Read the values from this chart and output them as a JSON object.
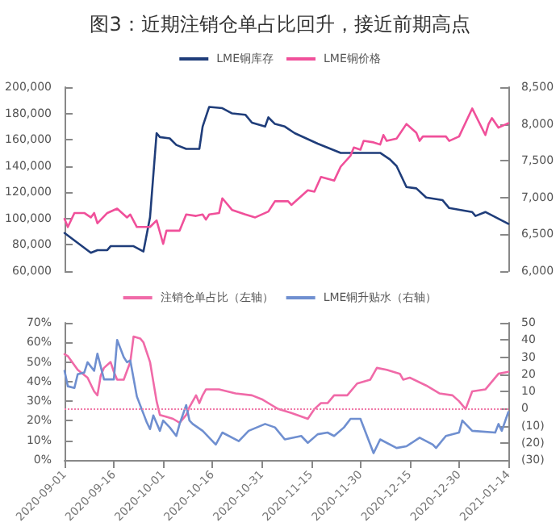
{
  "chart_data": [
    {
      "type": "line",
      "title": "图3：近期注销仓单占比回升，接近前期高点",
      "legend": "top",
      "marker": "none",
      "tick_labels": "y",
      "xlim": [
        "2020-09-01",
        "2021-01-14"
      ],
      "ylim": [
        60000,
        200000
      ],
      "yticks": [
        {
          "value": 60000,
          "label": "60,000"
        },
        {
          "value": 80000,
          "label": "80,000"
        },
        {
          "value": 100000,
          "label": "100,000"
        },
        {
          "value": 120000,
          "label": "120,000"
        },
        {
          "value": 140000,
          "label": "140,000"
        },
        {
          "value": 160000,
          "label": "160,000"
        },
        {
          "value": 180000,
          "label": "180,000"
        },
        {
          "value": 200000,
          "label": "200,000"
        }
      ],
      "y2lim": [
        6000,
        8500
      ],
      "y2ticks": [
        {
          "value": 6000,
          "label": "6,000"
        },
        {
          "value": 6500,
          "label": "6,500"
        },
        {
          "value": 7000,
          "label": "7,000"
        },
        {
          "value": 7500,
          "label": "7,500"
        },
        {
          "value": 8000,
          "label": "8,000"
        },
        {
          "value": 8500,
          "label": "8,500"
        }
      ],
      "series": [
        {
          "name": "LME铜库存",
          "color": "#1f3d7a",
          "x": [
            "2020-09-01",
            "2020-09-09",
            "2020-09-11",
            "2020-09-14",
            "2020-09-15",
            "2020-09-22",
            "2020-09-25",
            "2020-09-27",
            "2020-09-29",
            "2020-09-30",
            "2020-10-03",
            "2020-10-05",
            "2020-10-08",
            "2020-10-12",
            "2020-10-13",
            "2020-10-15",
            "2020-10-19",
            "2020-10-22",
            "2020-10-26",
            "2020-10-28",
            "2020-11-01",
            "2020-11-02",
            "2020-11-04",
            "2020-11-07",
            "2020-11-10",
            "2020-11-17",
            "2020-11-24",
            "2020-12-06",
            "2020-12-09",
            "2020-12-11",
            "2020-12-14",
            "2020-12-17",
            "2020-12-20",
            "2020-12-25",
            "2020-12-27",
            "2021-01-03",
            "2021-01-04",
            "2021-01-07",
            "2021-01-14"
          ],
          "values": [
            89000,
            74000,
            76000,
            76000,
            79000,
            79000,
            75000,
            101000,
            165000,
            162000,
            161000,
            156000,
            153000,
            153000,
            170000,
            185000,
            184000,
            180000,
            179000,
            173000,
            170000,
            177000,
            172000,
            170000,
            165000,
            157000,
            150000,
            150000,
            145000,
            140000,
            124000,
            123000,
            116000,
            114000,
            108000,
            105000,
            102000,
            105000,
            96000
          ]
        },
        {
          "name": "LME铜价格",
          "color": "#f0509a",
          "axis": "y2",
          "x": [
            "2020-09-01",
            "2020-09-02",
            "2020-09-04",
            "2020-09-07",
            "2020-09-09",
            "2020-09-10",
            "2020-09-11",
            "2020-09-14",
            "2020-09-17",
            "2020-09-20",
            "2020-09-21",
            "2020-09-23",
            "2020-09-27",
            "2020-09-29",
            "2020-10-01",
            "2020-10-02",
            "2020-10-06",
            "2020-10-08",
            "2020-10-11",
            "2020-10-13",
            "2020-10-14",
            "2020-10-15",
            "2020-10-18",
            "2020-10-19",
            "2020-10-22",
            "2020-10-26",
            "2020-10-29",
            "2020-11-02",
            "2020-11-04",
            "2020-11-08",
            "2020-11-09",
            "2020-11-14",
            "2020-11-16",
            "2020-11-18",
            "2020-11-22",
            "2020-11-24",
            "2020-11-27",
            "2020-11-28",
            "2020-11-30",
            "2020-12-01",
            "2020-12-04",
            "2020-12-06",
            "2020-12-07",
            "2020-12-08",
            "2020-12-11",
            "2020-12-14",
            "2020-12-17",
            "2020-12-18",
            "2020-12-19",
            "2020-12-26",
            "2020-12-27",
            "2020-12-30",
            "2021-01-03",
            "2021-01-07",
            "2021-01-08",
            "2021-01-09",
            "2021-01-11",
            "2021-01-14"
          ],
          "values": [
            6710,
            6600,
            6790,
            6790,
            6730,
            6790,
            6650,
            6790,
            6850,
            6730,
            6770,
            6600,
            6600,
            6690,
            6370,
            6550,
            6550,
            6770,
            6750,
            6770,
            6700,
            6770,
            6790,
            6990,
            6830,
            6770,
            6730,
            6810,
            6950,
            6950,
            6900,
            7100,
            7080,
            7280,
            7230,
            7420,
            7570,
            7680,
            7650,
            7770,
            7750,
            7720,
            7850,
            7770,
            7800,
            8000,
            7880,
            7770,
            7830,
            7830,
            7770,
            7830,
            8210,
            7850,
            8000,
            8080,
            7950,
            8010
          ]
        }
      ]
    },
    {
      "type": "line",
      "legend": "top",
      "marker": "none",
      "xlim": [
        "2020-09-01",
        "2021-01-14"
      ],
      "xticks": [
        "2020-09-01",
        "2020-09-16",
        "2020-10-01",
        "2020-10-16",
        "2020-10-31",
        "2020-11-15",
        "2020-11-30",
        "2020-12-15",
        "2020-12-30",
        "2021-01-14"
      ],
      "ylim": [
        0,
        70
      ],
      "yticks": [
        {
          "value": 0,
          "label": "0%"
        },
        {
          "value": 10,
          "label": "10%"
        },
        {
          "value": 20,
          "label": "20%"
        },
        {
          "value": 30,
          "label": "30%"
        },
        {
          "value": 40,
          "label": "40%"
        },
        {
          "value": 50,
          "label": "50%"
        },
        {
          "value": 60,
          "label": "60%"
        },
        {
          "value": 70,
          "label": "70%"
        }
      ],
      "y2lim": [
        -30,
        50
      ],
      "y2ticks": [
        {
          "value": -30,
          "label": "(30)"
        },
        {
          "value": -20,
          "label": "(20)"
        },
        {
          "value": -10,
          "label": "(10)"
        },
        0,
        10,
        20,
        30,
        40,
        50
      ],
      "ref_lines": [
        {
          "axis": "y2",
          "value": 0,
          "color": "#f07aa8",
          "line_style": "dotted"
        }
      ],
      "series": [
        {
          "name": "注销仓单占比（左轴）",
          "color": "#f06aa8",
          "x": [
            "2020-09-01",
            "2020-09-02",
            "2020-09-05",
            "2020-09-08",
            "2020-09-10",
            "2020-09-11",
            "2020-09-12",
            "2020-09-13",
            "2020-09-15",
            "2020-09-16",
            "2020-09-17",
            "2020-09-19",
            "2020-09-21",
            "2020-09-22",
            "2020-09-24",
            "2020-09-25",
            "2020-09-27",
            "2020-09-28",
            "2020-09-29",
            "2020-09-30",
            "2020-10-02",
            "2020-10-04",
            "2020-10-06",
            "2020-10-08",
            "2020-10-09",
            "2020-10-11",
            "2020-10-12",
            "2020-10-13",
            "2020-10-14",
            "2020-10-18",
            "2020-10-23",
            "2020-10-28",
            "2020-10-31",
            "2020-11-03",
            "2020-11-05",
            "2020-11-09",
            "2020-11-14",
            "2020-11-16",
            "2020-11-18",
            "2020-11-20",
            "2020-11-22",
            "2020-11-26",
            "2020-11-29",
            "2020-12-03",
            "2020-12-05",
            "2020-12-08",
            "2020-12-12",
            "2020-12-13",
            "2020-12-15",
            "2020-12-20",
            "2020-12-24",
            "2020-12-28",
            "2020-12-30",
            "2021-01-01",
            "2021-01-03",
            "2021-01-07",
            "2021-01-11",
            "2021-01-14"
          ],
          "values": [
            54,
            53,
            46,
            42,
            35,
            33,
            43,
            47,
            50,
            45,
            41,
            41,
            50,
            63,
            62,
            60,
            50,
            40,
            30,
            23,
            22,
            21,
            19,
            23,
            27,
            33,
            29,
            33,
            36,
            36,
            34,
            33,
            31,
            28,
            26,
            24,
            21,
            26,
            29,
            29,
            33,
            33,
            39,
            41,
            47,
            46,
            44,
            41,
            42,
            38,
            34,
            33,
            30,
            26,
            35,
            36,
            44,
            45
          ]
        },
        {
          "name": "LME铜升贴水（右轴）",
          "color": "#6f8fd0",
          "axis": "y2",
          "x": [
            "2020-09-01",
            "2020-09-02",
            "2020-09-04",
            "2020-09-05",
            "2020-09-07",
            "2020-09-08",
            "2020-09-10",
            "2020-09-11",
            "2020-09-13",
            "2020-09-16",
            "2020-09-17",
            "2020-09-19",
            "2020-09-20",
            "2020-09-21",
            "2020-09-23",
            "2020-09-25",
            "2020-09-26",
            "2020-09-27",
            "2020-09-28",
            "2020-09-30",
            "2020-10-01",
            "2020-10-03",
            "2020-10-05",
            "2020-10-06",
            "2020-10-08",
            "2020-10-09",
            "2020-10-10",
            "2020-10-13",
            "2020-10-17",
            "2020-10-19",
            "2020-10-24",
            "2020-10-27",
            "2020-11-01",
            "2020-11-04",
            "2020-11-07",
            "2020-11-12",
            "2020-11-14",
            "2020-11-17",
            "2020-11-20",
            "2020-11-22",
            "2020-11-25",
            "2020-11-27",
            "2020-11-30",
            "2020-12-04",
            "2020-12-06",
            "2020-12-11",
            "2020-12-14",
            "2020-12-18",
            "2020-12-22",
            "2020-12-23",
            "2020-12-26",
            "2020-12-30",
            "2020-12-31",
            "2021-01-03",
            "2021-01-10",
            "2021-01-11",
            "2021-01-12",
            "2021-01-14"
          ],
          "values": [
            22,
            13,
            12,
            20,
            21,
            27,
            22,
            32,
            17,
            17,
            40,
            30,
            27,
            28,
            7,
            -3,
            -8,
            -12,
            -4,
            -13,
            -7,
            -11,
            -16,
            -9,
            2,
            -7,
            -9,
            -13,
            -21,
            -14,
            -19,
            -13,
            -9,
            -11,
            -18,
            -16,
            -20,
            -15,
            -14,
            -16,
            -11,
            -6,
            -6,
            -26,
            -18,
            -23,
            -22,
            -17,
            -21,
            -23,
            -16,
            -14,
            -7,
            -13,
            -14,
            -9,
            -13,
            -2
          ]
        }
      ]
    }
  ]
}
